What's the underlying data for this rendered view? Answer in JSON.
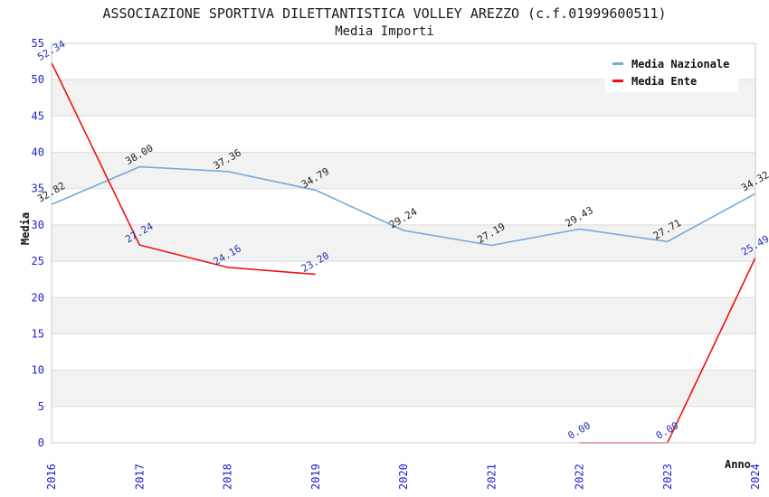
{
  "chart_data": {
    "type": "line",
    "title": "ASSOCIAZIONE SPORTIVA DILETTANTISTICA VOLLEY AREZZO (c.f.01999600511)",
    "subtitle": "Media Importi",
    "xlabel": "Anno",
    "ylabel": "Media",
    "x": [
      "2016",
      "2017",
      "2018",
      "2019",
      "2020",
      "2021",
      "2022",
      "2023",
      "2024"
    ],
    "ylim": [
      0,
      55
    ],
    "ytick_step": 5,
    "grid": "horizontal-bands",
    "legend_position": "top-right",
    "colors": {
      "band": "#f2f2f2",
      "grid": "#dcdcdc",
      "spine": "#c9c9c9",
      "tick_label": "#2222cc",
      "background": "#ffffff"
    },
    "series": [
      {
        "name": "Media Nazionale",
        "color": "#74a9dc",
        "label_color": "#222222",
        "values": [
          32.82,
          38.0,
          37.36,
          34.79,
          29.24,
          27.19,
          29.43,
          27.71,
          34.32
        ]
      },
      {
        "name": "Media Ente",
        "color": "#ee1111",
        "label_color": "#2233aa",
        "values": [
          52.34,
          27.24,
          24.16,
          23.2,
          null,
          null,
          0.0,
          0.0,
          25.49
        ]
      }
    ]
  }
}
